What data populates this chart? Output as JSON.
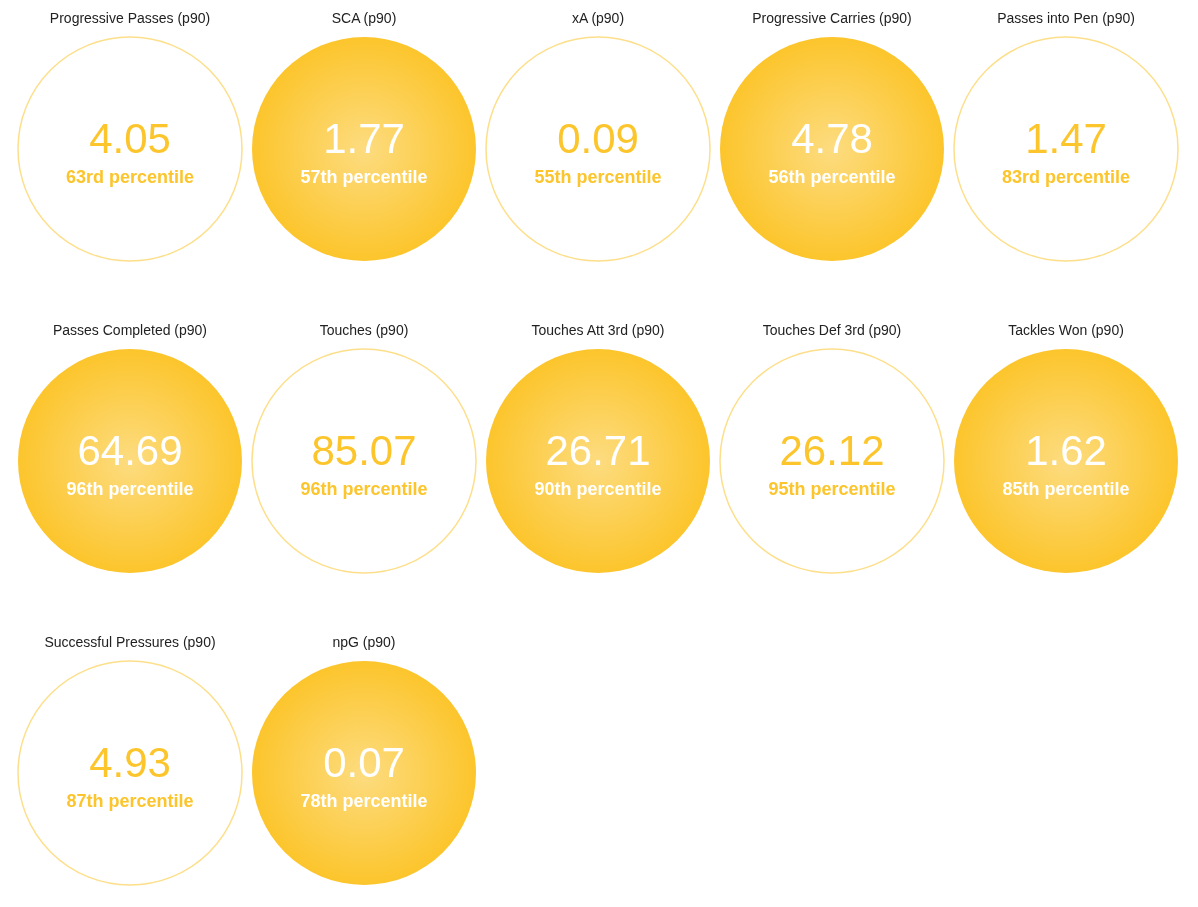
{
  "chart_data": {
    "type": "other",
    "categories": [
      "Progressive Passes (p90)",
      "SCA (p90)",
      "xA (p90)",
      "Progressive Carries (p90)",
      "Passes into Pen (p90)",
      "Passes Completed (p90)",
      "Touches (p90)",
      "Touches Att 3rd (p90)",
      "Touches Def 3rd (p90)",
      "Tackles Won (p90)",
      "Successful Pressures (p90)",
      "npG (p90)"
    ],
    "series": [
      {
        "color": "#fcc52c",
        "colors": [
          "#ffffff",
          "#fcc52c",
          "#ffffff",
          "#fcc52c",
          "#ffffff",
          "#fcc52c",
          "#ffffff",
          "#fcc52c",
          "#ffffff",
          "#fcc52c",
          "#ffffff",
          "#fcc52c"
        ],
        "values": [
          4.05,
          1.77,
          0.09,
          4.78,
          1.47,
          64.69,
          85.07,
          26.71,
          26.12,
          1.62,
          4.93,
          0.07
        ]
      },
      {
        "values": [
          63,
          57,
          55,
          56,
          83,
          96,
          96,
          90,
          95,
          85,
          87,
          78
        ],
        "value_labels": [
          "63rd percentile",
          "57th percentile",
          "55th percentile",
          "56th percentile",
          "83rd percentile",
          "96th percentile",
          "96th percentile",
          "90th percentile",
          "95th percentile",
          "85th percentile",
          "87th percentile",
          "78th percentile"
        ]
      }
    ],
    "data_labels": true
  }
}
